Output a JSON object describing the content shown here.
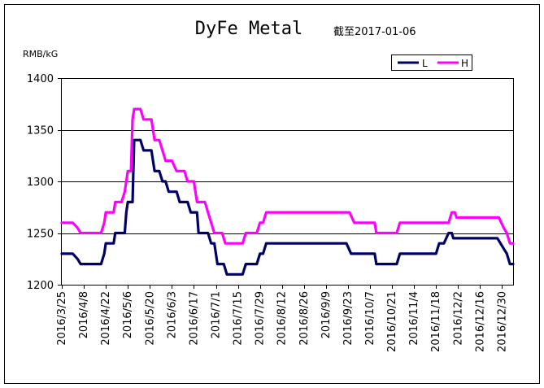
{
  "chart_data": {
    "type": "line",
    "title": "DyFe Metal",
    "subtitle": "截至2017-01-06",
    "ylabel": "RMB/kG",
    "ylim": [
      1200,
      1400
    ],
    "yticks": [
      1200,
      1250,
      1300,
      1350,
      1400
    ],
    "grid": "horizontal",
    "legend_position": "top-right",
    "xlim": [
      "2016-03-25",
      "2017-01-06"
    ],
    "xtick_labels": [
      "2016/3/25",
      "2016/4/8",
      "2016/4/22",
      "2016/5/6",
      "2016/5/20",
      "2016/6/3",
      "2016/6/17",
      "2016/7/1",
      "2016/7/15",
      "2016/7/29",
      "2016/8/12",
      "2016/8/26",
      "2016/9/9",
      "2016/9/23",
      "2016/10/7",
      "2016/10/21",
      "2016/11/4",
      "2016/11/18",
      "2016/12/2",
      "2016/12/16",
      "2016/12/30"
    ],
    "series": [
      {
        "name": "L",
        "color": "#000066",
        "points": [
          [
            "2016-03-25",
            1230
          ],
          [
            "2016-04-01",
            1230
          ],
          [
            "2016-04-04",
            1225
          ],
          [
            "2016-04-06",
            1220
          ],
          [
            "2016-04-19",
            1220
          ],
          [
            "2016-04-21",
            1230
          ],
          [
            "2016-04-22",
            1240
          ],
          [
            "2016-04-27",
            1240
          ],
          [
            "2016-04-28",
            1250
          ],
          [
            "2016-05-04",
            1250
          ],
          [
            "2016-05-05",
            1270
          ],
          [
            "2016-05-06",
            1280
          ],
          [
            "2016-05-09",
            1280
          ],
          [
            "2016-05-10",
            1340
          ],
          [
            "2016-05-14",
            1340
          ],
          [
            "2016-05-16",
            1330
          ],
          [
            "2016-05-21",
            1330
          ],
          [
            "2016-05-23",
            1310
          ],
          [
            "2016-05-26",
            1310
          ],
          [
            "2016-05-28",
            1300
          ],
          [
            "2016-05-30",
            1300
          ],
          [
            "2016-06-01",
            1290
          ],
          [
            "2016-06-06",
            1290
          ],
          [
            "2016-06-08",
            1280
          ],
          [
            "2016-06-13",
            1280
          ],
          [
            "2016-06-15",
            1270
          ],
          [
            "2016-06-19",
            1270
          ],
          [
            "2016-06-20",
            1250
          ],
          [
            "2016-06-26",
            1250
          ],
          [
            "2016-06-28",
            1240
          ],
          [
            "2016-06-30",
            1240
          ],
          [
            "2016-07-02",
            1220
          ],
          [
            "2016-07-06",
            1220
          ],
          [
            "2016-07-08",
            1210
          ],
          [
            "2016-07-18",
            1210
          ],
          [
            "2016-07-20",
            1220
          ],
          [
            "2016-07-27",
            1220
          ],
          [
            "2016-07-29",
            1230
          ],
          [
            "2016-07-31",
            1230
          ],
          [
            "2016-08-02",
            1240
          ],
          [
            "2016-09-22",
            1240
          ],
          [
            "2016-09-25",
            1230
          ],
          [
            "2016-10-10",
            1230
          ],
          [
            "2016-10-11",
            1220
          ],
          [
            "2016-10-24",
            1220
          ],
          [
            "2016-10-26",
            1230
          ],
          [
            "2016-11-18",
            1230
          ],
          [
            "2016-11-20",
            1240
          ],
          [
            "2016-11-23",
            1240
          ],
          [
            "2016-11-26",
            1250
          ],
          [
            "2016-11-28",
            1250
          ],
          [
            "2016-11-29",
            1245
          ],
          [
            "2016-12-27",
            1245
          ],
          [
            "2016-12-31",
            1235
          ],
          [
            "2017-01-02",
            1230
          ],
          [
            "2017-01-04",
            1220
          ],
          [
            "2017-01-06",
            1220
          ]
        ]
      },
      {
        "name": "H",
        "color": "#ff00ff",
        "points": [
          [
            "2016-03-25",
            1260
          ],
          [
            "2016-04-01",
            1260
          ],
          [
            "2016-04-04",
            1255
          ],
          [
            "2016-04-06",
            1250
          ],
          [
            "2016-04-19",
            1250
          ],
          [
            "2016-04-21",
            1260
          ],
          [
            "2016-04-22",
            1270
          ],
          [
            "2016-04-27",
            1270
          ],
          [
            "2016-04-28",
            1280
          ],
          [
            "2016-05-02",
            1280
          ],
          [
            "2016-05-04",
            1290
          ],
          [
            "2016-05-05",
            1300
          ],
          [
            "2016-05-06",
            1310
          ],
          [
            "2016-05-08",
            1310
          ],
          [
            "2016-05-09",
            1360
          ],
          [
            "2016-05-10",
            1370
          ],
          [
            "2016-05-14",
            1370
          ],
          [
            "2016-05-16",
            1360
          ],
          [
            "2016-05-21",
            1360
          ],
          [
            "2016-05-23",
            1340
          ],
          [
            "2016-05-26",
            1340
          ],
          [
            "2016-05-28",
            1330
          ],
          [
            "2016-05-30",
            1320
          ],
          [
            "2016-06-03",
            1320
          ],
          [
            "2016-06-06",
            1310
          ],
          [
            "2016-06-11",
            1310
          ],
          [
            "2016-06-13",
            1300
          ],
          [
            "2016-06-17",
            1300
          ],
          [
            "2016-06-19",
            1280
          ],
          [
            "2016-06-24",
            1280
          ],
          [
            "2016-06-26",
            1270
          ],
          [
            "2016-06-28",
            1260
          ],
          [
            "2016-06-30",
            1250
          ],
          [
            "2016-07-05",
            1250
          ],
          [
            "2016-07-07",
            1240
          ],
          [
            "2016-07-18",
            1240
          ],
          [
            "2016-07-20",
            1250
          ],
          [
            "2016-07-27",
            1250
          ],
          [
            "2016-07-29",
            1260
          ],
          [
            "2016-07-31",
            1260
          ],
          [
            "2016-08-02",
            1270
          ],
          [
            "2016-09-24",
            1270
          ],
          [
            "2016-09-27",
            1260
          ],
          [
            "2016-10-10",
            1260
          ],
          [
            "2016-10-11",
            1250
          ],
          [
            "2016-10-24",
            1250
          ],
          [
            "2016-10-26",
            1260
          ],
          [
            "2016-11-26",
            1260
          ],
          [
            "2016-11-28",
            1270
          ],
          [
            "2016-11-30",
            1270
          ],
          [
            "2016-12-01",
            1265
          ],
          [
            "2016-12-28",
            1265
          ],
          [
            "2016-12-31",
            1255
          ],
          [
            "2017-01-02",
            1250
          ],
          [
            "2017-01-04",
            1240
          ],
          [
            "2017-01-06",
            1240
          ]
        ]
      }
    ]
  }
}
